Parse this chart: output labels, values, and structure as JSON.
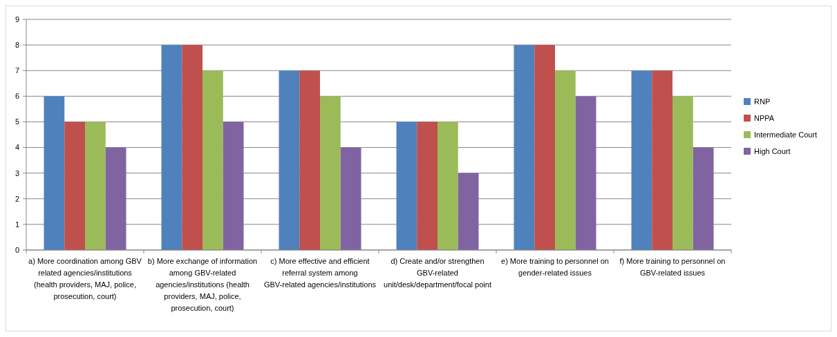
{
  "chart_data": {
    "type": "bar",
    "categories": [
      "a) More coordination among GBV related agencies/institutions (health providers, MAJ, police, prosecution, court)",
      "b) More exchange of information among GBV-related agencies/institutions (health providers, MAJ, police, prosecution, court)",
      "c) More effective and efficient referral system among GBV-related agencies/institutions",
      "d) Create and/or strengthen GBV-related unit/desk/department/focal point",
      "e) More training to personnel on gender-related issues",
      "f) More training to personnel on GBV-related issues"
    ],
    "series": [
      {
        "name": "RNP",
        "color": "#4f81bd",
        "values": [
          6,
          8,
          7,
          5,
          8,
          7
        ]
      },
      {
        "name": "NPPA",
        "color": "#c0504d",
        "values": [
          5,
          8,
          7,
          5,
          8,
          7
        ]
      },
      {
        "name": "Intermediate Court",
        "color": "#9bbb59",
        "values": [
          5,
          7,
          6,
          5,
          7,
          6
        ]
      },
      {
        "name": "High Court",
        "color": "#8064a2",
        "values": [
          4,
          5,
          4,
          3,
          6,
          4
        ]
      }
    ],
    "ylim": [
      0,
      9
    ],
    "yticks": [
      0,
      1,
      2,
      3,
      4,
      5,
      6,
      7,
      8,
      9
    ],
    "grid": "y",
    "legend": "right"
  }
}
